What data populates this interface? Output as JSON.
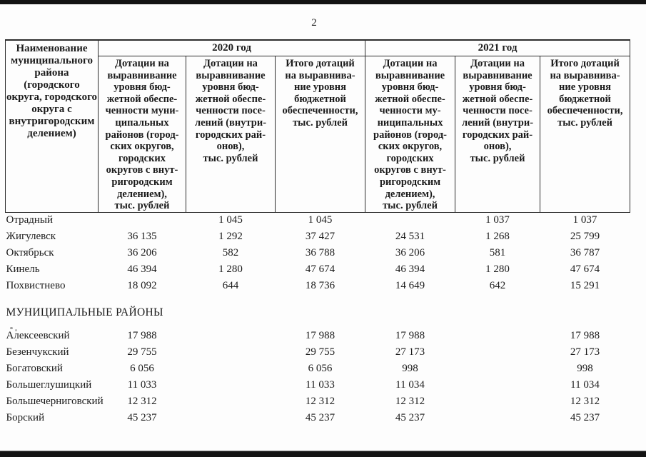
{
  "page": {
    "number": "2"
  },
  "table": {
    "name_header": "Наименование\nмуниципального\nрайона\n(городского\nокруга, городского\nокруга с\nвнутригородским\nделением)",
    "year_groups": [
      {
        "label": "2020 год",
        "columns": [
          "Дотации на\nвыравнивание\nуровня бюд-\nжетной обеспе-\nченности муни-\nципальных\nрайонов (город-\nских округов,\nгородских\nокругов с внут-\nригородским\nделением),\nтыс. рублей",
          "Дотации на\nвыравнивание\nуровня бюд-\nжетной обеспе-\nченности посе-\nлений (внутри-\nгородских рай-\nонов),\nтыс. рублей",
          "Итого дотаций\nна выравнива-\nние уровня\nбюджетной\nобеспеченности,\nтыс. рублей"
        ]
      },
      {
        "label": "2021 год",
        "columns": [
          "Дотации на\nвыравнивание\nуровня бюд-\nжетной обеспе-\nченности му-\nниципальных\nрайонов (город-\nских округов,\nгородских\nокругов с внут-\nригородским\nделением),\nтыс. рублей",
          "Дотации на\nвыравнивание\nуровня бюд-\nжетной обеспе-\nченности посе-\nлений (внутри-\nгородских рай-\nонов),\nтыс. рублей",
          "Итого дотаций\nна выравнива-\nние уровня\nбюджетной\nобеспеченности,\nтыс. рублей"
        ]
      }
    ],
    "sections": [
      {
        "heading": "",
        "rows": [
          {
            "name": "Отрадный",
            "values": [
              "",
              "1 045",
              "1 045",
              "",
              "1 037",
              "1 037"
            ]
          },
          {
            "name": "Жигулевск",
            "values": [
              "36 135",
              "1 292",
              "37 427",
              "24 531",
              "1 268",
              "25 799"
            ]
          },
          {
            "name": "Октябрьск",
            "values": [
              "36 206",
              "582",
              "36 788",
              "36 206",
              "581",
              "36 787"
            ]
          },
          {
            "name": "Кинель",
            "values": [
              "46 394",
              "1 280",
              "47 674",
              "46 394",
              "1 280",
              "47 674"
            ]
          },
          {
            "name": "Похвистнево",
            "values": [
              "18 092",
              "644",
              "18 736",
              "14 649",
              "642",
              "15 291"
            ]
          }
        ]
      },
      {
        "heading": "МУНИЦИПАЛЬНЫЕ РАЙОНЫ",
        "rows": [
          {
            "name": "Алексеевский",
            "values": [
              "17 988",
              "",
              "17 988",
              "17 988",
              "",
              "17 988"
            ]
          },
          {
            "name": "Безенчукский",
            "values": [
              "29 755",
              "",
              "29 755",
              "27 173",
              "",
              "27 173"
            ]
          },
          {
            "name": "Богатовский",
            "values": [
              "6 056",
              "",
              "6 056",
              "998",
              "",
              "998"
            ]
          },
          {
            "name": "Большеглушицкий",
            "values": [
              "11 033",
              "",
              "11 033",
              "11 034",
              "",
              "11 034"
            ]
          },
          {
            "name": "Большечерниговский",
            "values": [
              "12 312",
              "",
              "12 312",
              "12 312",
              "",
              "12 312"
            ]
          },
          {
            "name": "Борский",
            "values": [
              "45 237",
              "",
              "45 237",
              "45 237",
              "",
              "45 237"
            ]
          }
        ]
      }
    ]
  }
}
